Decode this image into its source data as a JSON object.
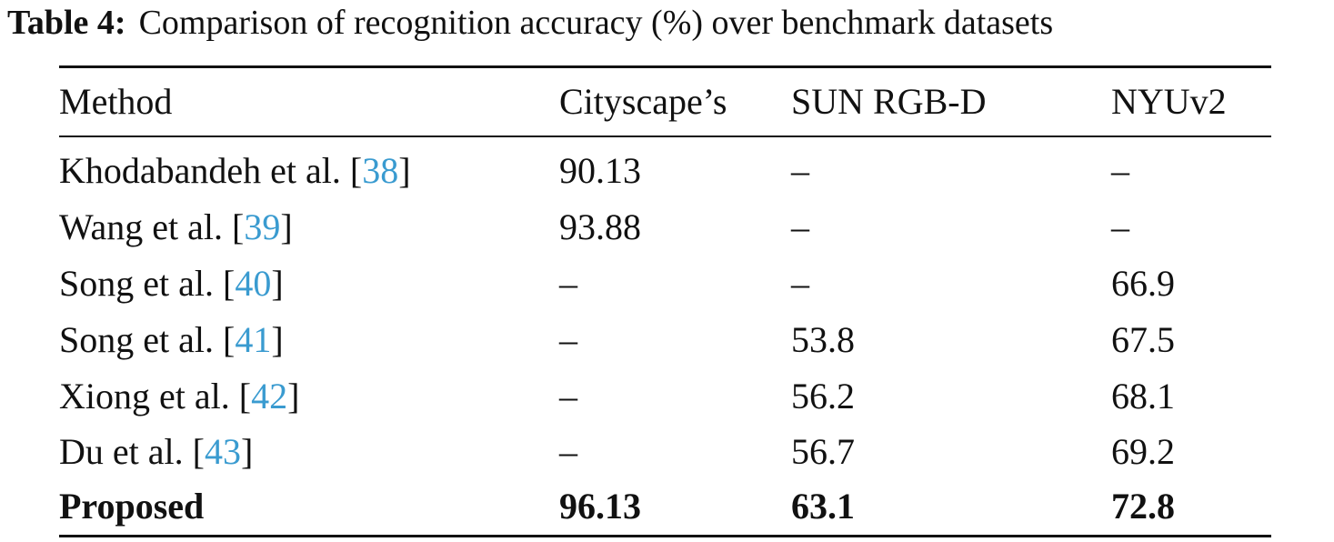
{
  "caption": {
    "label": "Table 4:",
    "text": "Comparison of recognition accuracy (%) over benchmark datasets"
  },
  "table": {
    "header": [
      "Method",
      "Cityscape’s",
      "SUN RGB-D",
      "NYUv2"
    ],
    "citation_brackets": [
      "[",
      "]"
    ],
    "rows": [
      {
        "method": "Khodabandeh et al.",
        "ref": "38",
        "values": [
          90.13,
          "–",
          "–"
        ]
      },
      {
        "method": "Wang et al.",
        "ref": "39",
        "values": [
          93.88,
          "–",
          "–"
        ]
      },
      {
        "method": "Song et al.",
        "ref": "40",
        "values": [
          "–",
          "–",
          66.9
        ]
      },
      {
        "method": "Song et al.",
        "ref": "41",
        "values": [
          "–",
          53.8,
          67.5
        ]
      },
      {
        "method": "Xiong et al.",
        "ref": "42",
        "values": [
          "–",
          56.2,
          68.1
        ]
      },
      {
        "method": "Du et al.",
        "ref": "43",
        "values": [
          "–",
          56.7,
          69.2
        ]
      },
      {
        "method": "Proposed",
        "values": [
          96.13,
          63.1,
          72.8
        ]
      }
    ]
  }
}
